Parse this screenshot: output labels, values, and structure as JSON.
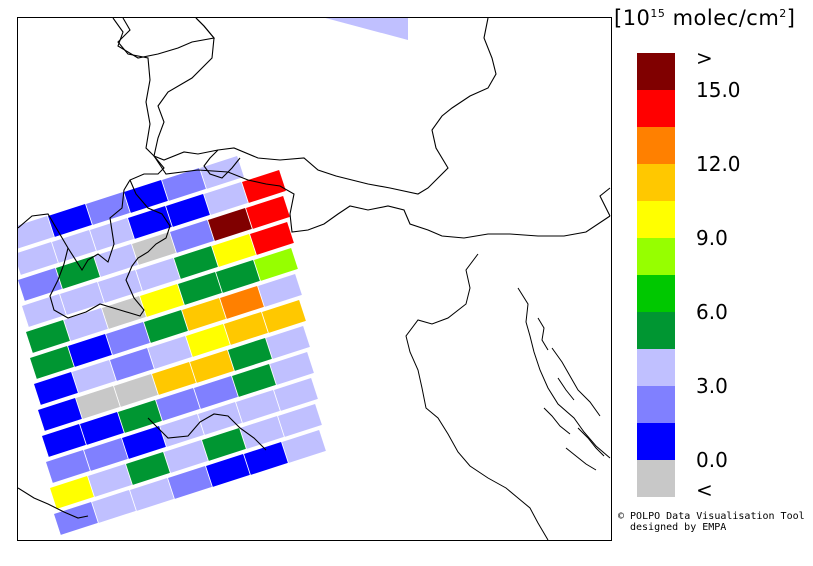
{
  "legend": {
    "unit_prefix": "[10",
    "unit_exp": "15",
    "unit_suffix": " molec/cm",
    "unit_sq": "2",
    "unit_close": "]",
    "colors": [
      "#800000",
      "#ff0000",
      "#ff8000",
      "#ffc800",
      "#ffff00",
      "#96ff00",
      "#00c800",
      "#009632",
      "#c0c0ff",
      "#8080ff",
      "#0000ff",
      "#c8c8c8"
    ],
    "tick_labels": [
      ">",
      "15.0",
      "12.0",
      "9.0",
      "6.0",
      "3.0",
      "0.0",
      "<"
    ]
  },
  "credit": {
    "line1": "© POLPO Data Visualisation Tool",
    "line2": "designed by EMPA"
  }
}
